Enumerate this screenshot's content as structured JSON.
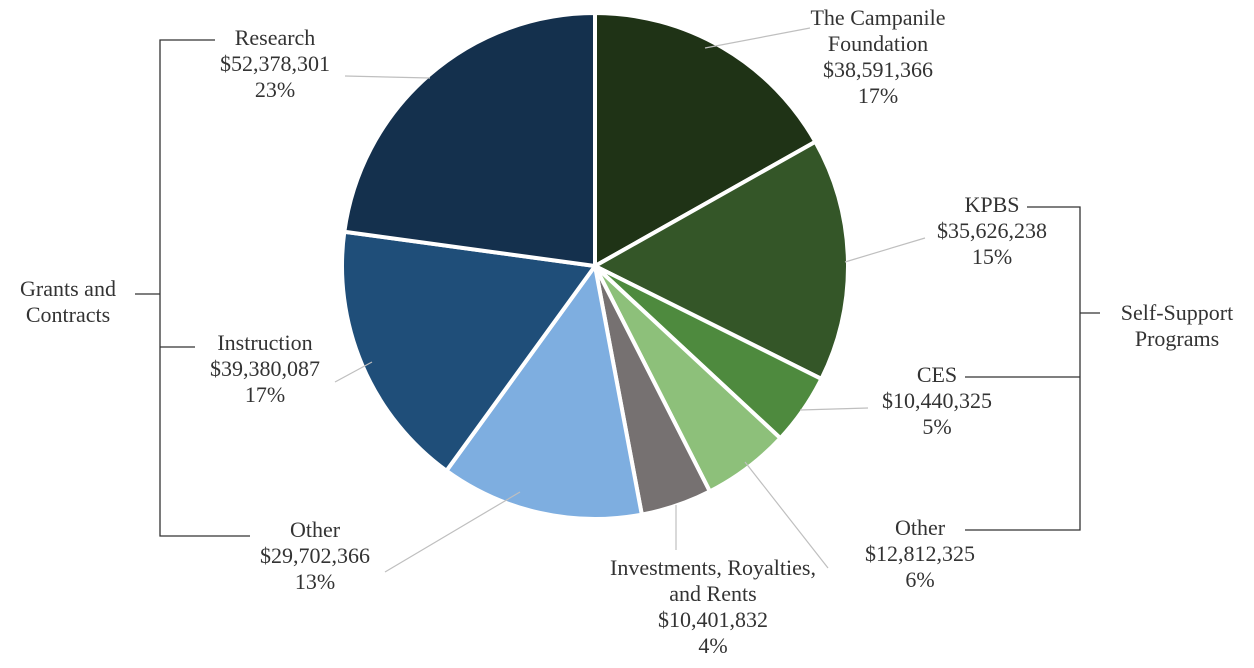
{
  "chart_data": {
    "type": "pie",
    "categories": [
      "The Campanile Foundation",
      "KPBS",
      "CES",
      "Other",
      "Investments, Royalties, and Rents",
      "Other",
      "Instruction",
      "Research"
    ],
    "values": [
      38591366,
      35626238,
      10440325,
      12812325,
      10401832,
      29702366,
      39380087,
      52378301
    ],
    "value_labels": [
      "$38,591,366",
      "$35,626,238",
      "$10,440,325",
      "$12,812,325",
      "$10,401,832",
      "$29,702,366",
      "$39,380,087",
      "$52,378,301"
    ],
    "percent_labels": [
      "17%",
      "15%",
      "5%",
      "6%",
      "4%",
      "13%",
      "17%",
      "23%"
    ],
    "colors": [
      "#1f3316",
      "#345628",
      "#4e8a3e",
      "#8dc07a",
      "#767171",
      "#7eaee0",
      "#1f4e79",
      "#14304d"
    ],
    "groups": [
      "Grants and Contracts",
      "Self-Support Programs"
    ]
  }
}
